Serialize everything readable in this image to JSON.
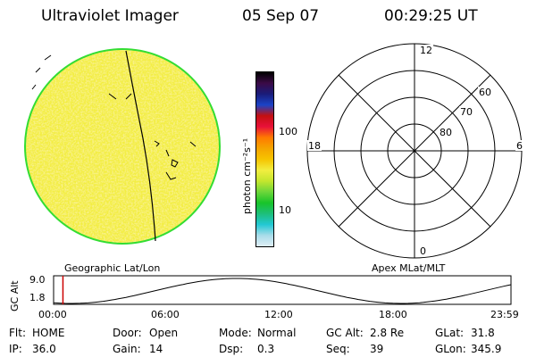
{
  "header": {
    "instrument": "Ultraviolet Imager",
    "date": "05 Sep 07",
    "time": "00:29:25 UT"
  },
  "image_panel": {
    "caption": "Geographic Lat/Lon",
    "earth_fill_color": "#f3ee42",
    "limb_color": "#33dd33"
  },
  "colorbar": {
    "unit_label": "photon cm⁻²s⁻¹",
    "ticks": [
      "100",
      "10"
    ],
    "colors": [
      "#000000",
      "#3b0a46",
      "#1a1c7a",
      "#1a44c8",
      "#c41010",
      "#e8103a",
      "#ff7a00",
      "#f5a500",
      "#f6c400",
      "#f2ee40",
      "#c4e62e",
      "#6cd63a",
      "#18c42a",
      "#1dbf7a",
      "#22c8d4",
      "#a9dce9",
      "#dfeef5"
    ]
  },
  "polar_grid": {
    "caption": "Apex MLat/MLT",
    "mlt_labels": {
      "top": "12",
      "bottom": "0",
      "left": "18",
      "right": "6"
    },
    "lat_labels": [
      "60",
      "70",
      "80"
    ]
  },
  "altitude_plot": {
    "ylabel": "GC Alt",
    "yticks": [
      "9.0",
      "1.8"
    ],
    "xticks": [
      "00:00",
      "06:00",
      "12:00",
      "18:00",
      "23:59"
    ],
    "marker_color": "#cc0000",
    "marker_time_hours": 0.49
  },
  "status": {
    "rows": [
      [
        {
          "k": "Flt:",
          "v": "HOME"
        },
        {
          "k": "Door:",
          "v": "Open"
        },
        {
          "k": "Mode:",
          "v": "Normal"
        },
        {
          "k": "GC Alt:",
          "v": "2.8 Re"
        },
        {
          "k": "GLat:",
          "v": "31.8"
        }
      ],
      [
        {
          "k": "IP:",
          "v": "36.0"
        },
        {
          "k": "Gain:",
          "v": "14"
        },
        {
          "k": "Dsp:",
          "v": "0.3"
        },
        {
          "k": "Seq:",
          "v": "39"
        },
        {
          "k": "GLon:",
          "v": "345.9"
        }
      ]
    ]
  }
}
